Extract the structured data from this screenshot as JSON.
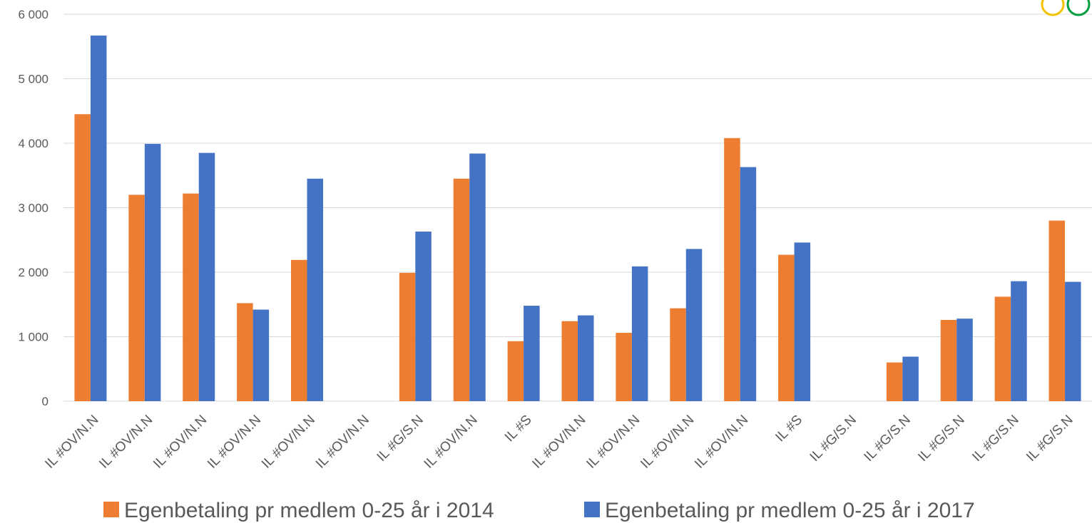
{
  "chart_data": {
    "type": "bar",
    "categories": [
      "IL #OV/N.N",
      "IL #OV/N.N",
      "IL #OV/N.N",
      "IL #OV/N.N",
      "IL #OV/N.N",
      "IL #OV/N.N",
      "IL #G/S.N",
      "IL #OV/N.N",
      "IL #S",
      "IL #OV/N.N",
      "IL #OV/N.N",
      "IL #OV/N.N",
      "IL #OV/N.N",
      "IL #S",
      "IL #G/S.N",
      "IL #G/S.N",
      "IL #G/S.N",
      "IL #G/S.N",
      "IL #G/S.N"
    ],
    "series": [
      {
        "name": "Egenbetaling pr medlem 0-25 år i 2014",
        "color": "#ed7d31",
        "values": [
          4450,
          3200,
          3220,
          1520,
          2190,
          null,
          1990,
          3450,
          930,
          1240,
          1060,
          1440,
          4080,
          2270,
          null,
          600,
          1260,
          1620,
          2800
        ]
      },
      {
        "name": "Egenbetaling pr medlem 0-25 år i 2017",
        "color": "#4472c4",
        "values": [
          5670,
          3990,
          3850,
          1420,
          3450,
          null,
          2630,
          3840,
          1480,
          1330,
          2090,
          2360,
          3630,
          2460,
          null,
          690,
          1280,
          1860,
          1850
        ]
      }
    ],
    "yticks": [
      "0",
      "1 000",
      "2 000",
      "3 000",
      "4 000",
      "5 000",
      "6 000"
    ],
    "ylim": [
      0,
      6000
    ],
    "grid": true,
    "legend": "bottom"
  },
  "icons": [
    "olympic-rings-icon"
  ]
}
